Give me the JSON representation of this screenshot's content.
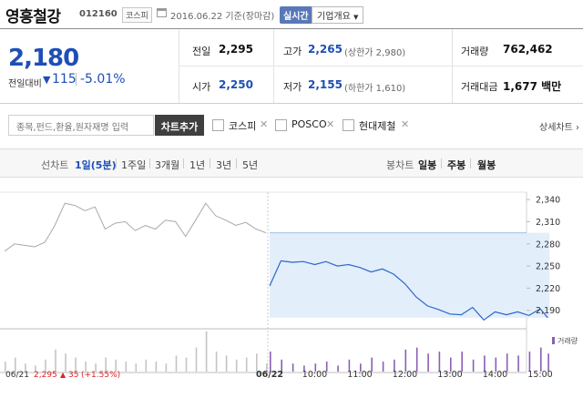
{
  "header": {
    "name": "영흥철강",
    "code": "012160",
    "market": "코스피",
    "as_of": "2016.06.22 기준(장마감)",
    "realtime_label": "실시간",
    "overview_label": "기업개요"
  },
  "quote": {
    "price": "2,180",
    "change_label": "전일대비",
    "change_value": "115",
    "change_pct": "-5.01%",
    "prev_close_label": "전일",
    "prev_close": "2,295",
    "open_label": "시가",
    "open": "2,250",
    "high_label": "고가",
    "high": "2,265",
    "upper_limit": "(상한가 2,980)",
    "low_label": "저가",
    "low": "2,155",
    "lower_limit": "(하한가 1,610)",
    "volume_label": "거래량",
    "volume": "762,462",
    "amount_label": "거래대금",
    "amount": "1,677 백만"
  },
  "compare": {
    "placeholder": "종목,펀드,환율,원자재명 입력",
    "add_button": "차트추가",
    "items": [
      "코스피",
      "POSCO",
      "현대제철"
    ],
    "detail_link": "상세차트 ›"
  },
  "period_tabs": {
    "line_chart_label": "선차트",
    "tabs": [
      "1일(5분)",
      "1주일",
      "3개월",
      "1년",
      "3년",
      "5년"
    ],
    "active": "1일(5분)",
    "candle_label": "봉차트",
    "candle_tabs": [
      "일봉",
      "주봉",
      "월봉"
    ]
  },
  "colors": {
    "down": "#1e4fb5",
    "up": "#e02424",
    "price_line": "#2a66c9",
    "prev_line": "#a8a8a8",
    "band": "#e3eefb",
    "volume_bar": "#8a5fb6",
    "prev_volume_bar": "#c4c4c4"
  },
  "chart_data": {
    "type": "line",
    "ylim": [
      2165,
      2350
    ],
    "y_ticks": [
      "2,340",
      "2,310",
      "2,280",
      "2,250",
      "2,220",
      "2,190"
    ],
    "x_ticks": [
      "06/22",
      "10:00",
      "11:00",
      "12:00",
      "13:00",
      "14:00",
      "15:00"
    ],
    "grid": false,
    "series": [
      {
        "x": [
          "06/21 09:00",
          "06/21 09:15",
          "06/21 09:30",
          "06/21 09:45",
          "06/21 10:00",
          "06/21 10:15",
          "06/21 10:30",
          "06/21 10:45",
          "06/21 11:00",
          "06/21 11:15",
          "06/21 11:30",
          "06/21 11:45",
          "06/21 12:00",
          "06/21 12:15",
          "06/21 12:30",
          "06/21 12:45",
          "06/21 13:00",
          "06/21 13:15",
          "06/21 13:30",
          "06/21 13:45",
          "06/21 14:00",
          "06/21 14:15",
          "06/21 14:30",
          "06/21 14:45",
          "06/21 15:00",
          "06/21 15:15",
          "06/21 15:30"
        ],
        "values": [
          2270,
          2280,
          2278,
          2276,
          2282,
          2305,
          2335,
          2332,
          2325,
          2330,
          2300,
          2308,
          2310,
          2298,
          2305,
          2300,
          2312,
          2310,
          2290,
          2312,
          2335,
          2318,
          2312,
          2305,
          2309,
          2300,
          2295
        ]
      },
      {
        "x": [
          "09:00",
          "09:15",
          "09:30",
          "09:45",
          "10:00",
          "10:15",
          "10:30",
          "10:45",
          "11:00",
          "11:15",
          "11:30",
          "11:45",
          "12:00",
          "12:15",
          "12:30",
          "12:45",
          "13:00",
          "13:15",
          "13:30",
          "13:45",
          "14:00",
          "14:15",
          "14:30",
          "14:45",
          "15:00",
          "15:10"
        ],
        "values": [
          2223,
          2257,
          2255,
          2256,
          2252,
          2256,
          2250,
          2252,
          2248,
          2242,
          2246,
          2239,
          2226,
          2208,
          2196,
          2191,
          2185,
          2184,
          2194,
          2177,
          2188,
          2184,
          2188,
          2183,
          2192,
          2180
        ]
      }
    ],
    "band": [
      2180,
      2295
    ],
    "volume_x": [
      "06/21 09:00",
      "06/21 09:15",
      "06/21 09:30",
      "06/21 09:45",
      "06/21 10:00",
      "06/21 10:15",
      "06/21 10:30",
      "06/21 10:45",
      "06/21 11:00",
      "06/21 11:15",
      "06/21 11:30",
      "06/21 11:45",
      "06/21 12:00",
      "06/21 12:15",
      "06/21 12:30",
      "06/21 12:45",
      "06/21 13:00",
      "06/21 13:15",
      "06/21 13:30",
      "06/21 13:45",
      "06/21 14:00",
      "06/21 14:15",
      "06/21 14:30",
      "06/21 14:45",
      "06/21 15:00",
      "06/21 15:15",
      "06/21 15:30",
      "09:00",
      "09:15",
      "09:30",
      "09:45",
      "10:00",
      "10:15",
      "10:30",
      "10:45",
      "11:00",
      "11:15",
      "11:30",
      "11:45",
      "12:00",
      "12:15",
      "12:30",
      "12:45",
      "13:00",
      "13:15",
      "13:30",
      "13:45",
      "14:00",
      "14:15",
      "14:30",
      "14:45",
      "15:00",
      "15:10"
    ],
    "volume_values": [
      0.25,
      0.35,
      0.2,
      0.15,
      0.3,
      0.55,
      0.45,
      0.35,
      0.25,
      0.2,
      0.35,
      0.3,
      0.25,
      0.2,
      0.3,
      0.25,
      0.2,
      0.4,
      0.35,
      0.6,
      1.0,
      0.5,
      0.4,
      0.3,
      0.35,
      0.45,
      0.2,
      0.5,
      0.3,
      0.2,
      0.15,
      0.2,
      0.25,
      0.15,
      0.3,
      0.2,
      0.35,
      0.25,
      0.3,
      0.55,
      0.6,
      0.45,
      0.5,
      0.35,
      0.5,
      0.3,
      0.4,
      0.35,
      0.45,
      0.4,
      0.5,
      0.6,
      0.45
    ],
    "volume_label": "거래량",
    "footer": {
      "date": "06/21",
      "price": "2,295",
      "arrow": "▲",
      "change": "35",
      "pct": "(+1.55%)"
    }
  }
}
